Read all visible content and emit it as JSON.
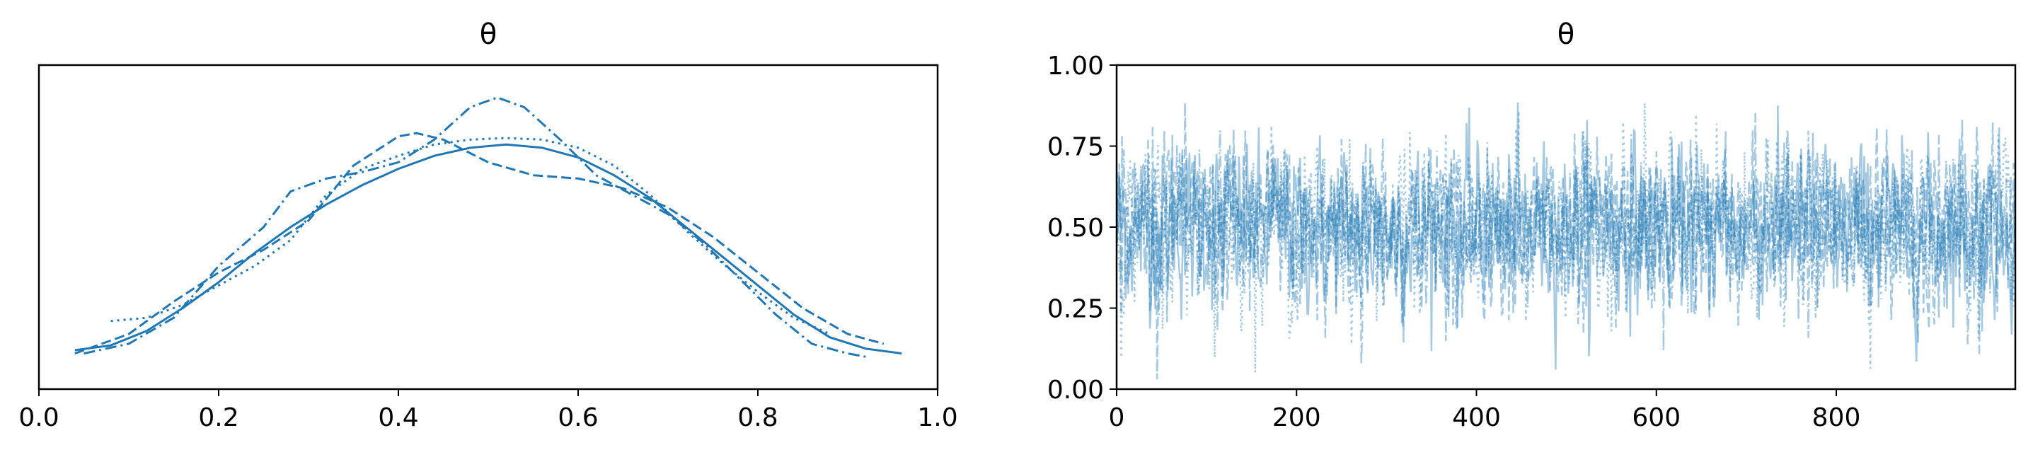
{
  "colors": {
    "series": "#1f77b4",
    "axes": "#000000",
    "background": "#ffffff"
  },
  "chart_data": [
    {
      "type": "line",
      "title": "θ",
      "xlabel": "",
      "ylabel": "",
      "xlim": [
        0.0,
        1.0
      ],
      "xticks": [
        0.0,
        0.2,
        0.4,
        0.6,
        0.8,
        1.0
      ],
      "xtick_labels": [
        "0.0",
        "0.2",
        "0.4",
        "0.6",
        "0.8",
        "1.0"
      ],
      "ylim": [
        0,
        1
      ],
      "yticks": [],
      "grid": false,
      "series": [
        {
          "linestyle": "solid",
          "x": [
            0.04,
            0.08,
            0.12,
            0.16,
            0.2,
            0.24,
            0.28,
            0.32,
            0.36,
            0.4,
            0.44,
            0.48,
            0.52,
            0.56,
            0.6,
            0.64,
            0.68,
            0.72,
            0.76,
            0.8,
            0.84,
            0.88,
            0.92,
            0.96
          ],
          "y": [
            0.12,
            0.135,
            0.18,
            0.25,
            0.33,
            0.42,
            0.5,
            0.57,
            0.63,
            0.68,
            0.72,
            0.745,
            0.755,
            0.745,
            0.715,
            0.66,
            0.59,
            0.5,
            0.41,
            0.32,
            0.23,
            0.16,
            0.125,
            0.11
          ]
        },
        {
          "linestyle": "dashed",
          "x": [
            0.04,
            0.1,
            0.15,
            0.2,
            0.25,
            0.3,
            0.35,
            0.4,
            0.42,
            0.45,
            0.5,
            0.55,
            0.6,
            0.65,
            0.7,
            0.75,
            0.8,
            0.85,
            0.9,
            0.94
          ],
          "y": [
            0.11,
            0.17,
            0.27,
            0.36,
            0.43,
            0.52,
            0.69,
            0.78,
            0.79,
            0.77,
            0.7,
            0.66,
            0.65,
            0.62,
            0.56,
            0.47,
            0.36,
            0.25,
            0.17,
            0.14
          ]
        },
        {
          "linestyle": "dotted",
          "x": [
            0.08,
            0.12,
            0.16,
            0.2,
            0.24,
            0.28,
            0.32,
            0.36,
            0.4,
            0.44,
            0.48,
            0.52,
            0.56,
            0.6,
            0.64,
            0.68,
            0.72,
            0.76,
            0.8,
            0.84,
            0.88
          ],
          "y": [
            0.21,
            0.22,
            0.26,
            0.32,
            0.38,
            0.46,
            0.6,
            0.68,
            0.72,
            0.755,
            0.77,
            0.775,
            0.77,
            0.745,
            0.69,
            0.6,
            0.49,
            0.39,
            0.3,
            0.22,
            0.17
          ]
        },
        {
          "linestyle": "dashdot",
          "x": [
            0.05,
            0.1,
            0.15,
            0.2,
            0.25,
            0.28,
            0.32,
            0.36,
            0.4,
            0.44,
            0.48,
            0.51,
            0.54,
            0.58,
            0.62,
            0.66,
            0.7,
            0.74,
            0.78,
            0.82,
            0.86,
            0.9,
            0.92
          ],
          "y": [
            0.11,
            0.14,
            0.22,
            0.38,
            0.5,
            0.61,
            0.65,
            0.67,
            0.7,
            0.77,
            0.87,
            0.9,
            0.87,
            0.77,
            0.66,
            0.6,
            0.54,
            0.45,
            0.34,
            0.23,
            0.14,
            0.11,
            0.1
          ]
        }
      ]
    },
    {
      "type": "line",
      "title": "θ",
      "xlabel": "",
      "ylabel": "",
      "xlim": [
        0,
        999
      ],
      "xticks": [
        0,
        200,
        400,
        600,
        800
      ],
      "xtick_labels": [
        "0",
        "200",
        "400",
        "600",
        "800"
      ],
      "ylim": [
        0.0,
        1.0
      ],
      "yticks": [
        0.0,
        0.25,
        0.5,
        0.75,
        1.0
      ],
      "ytick_labels": [
        "0.00",
        "0.25",
        "0.50",
        "0.75",
        "1.00"
      ],
      "grid": false,
      "n_draws": 1000,
      "series": [
        {
          "linestyle": "solid",
          "opacity": 0.4,
          "mean": 0.5,
          "sd": 0.18
        },
        {
          "linestyle": "dashed",
          "opacity": 0.4,
          "mean": 0.5,
          "sd": 0.18
        },
        {
          "linestyle": "dotted",
          "opacity": 0.4,
          "mean": 0.5,
          "sd": 0.18
        },
        {
          "linestyle": "dashdot",
          "opacity": 0.4,
          "mean": 0.5,
          "sd": 0.18
        }
      ]
    }
  ]
}
